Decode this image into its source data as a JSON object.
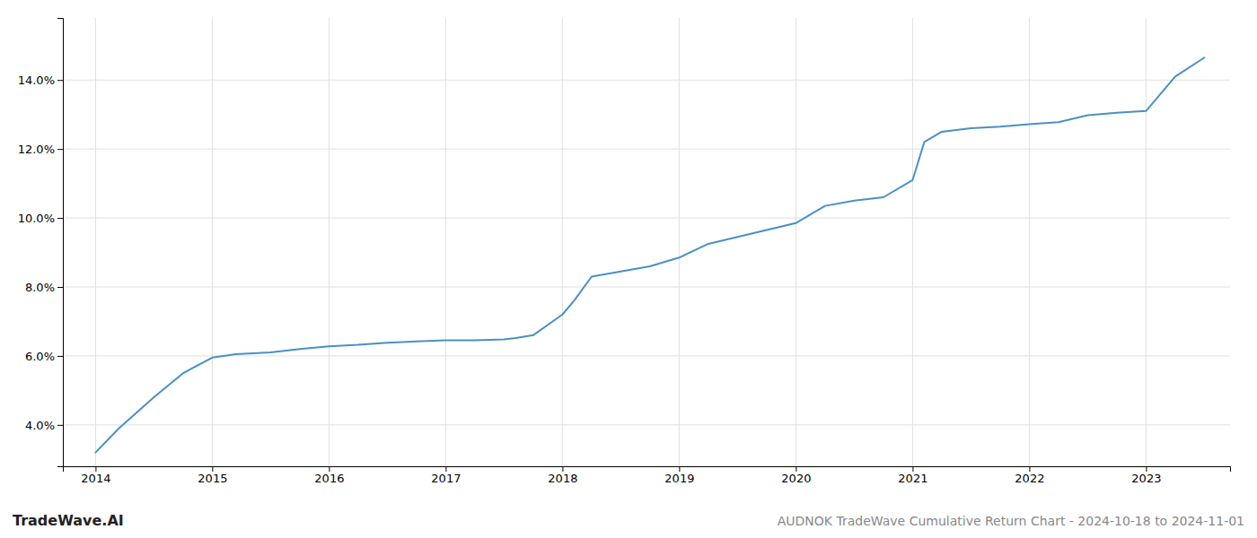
{
  "chart_data": {
    "type": "line",
    "title": "AUDNOK TradeWave Cumulative Return Chart - 2024-10-18 to 2024-11-01",
    "annotations": [
      "TradeWave.AI"
    ],
    "x": [
      2014.0,
      2014.2,
      2014.5,
      2014.75,
      2015.0,
      2015.2,
      2015.5,
      2015.75,
      2016.0,
      2016.25,
      2016.5,
      2016.75,
      2017.0,
      2017.25,
      2017.5,
      2017.6,
      2017.75,
      2018.0,
      2018.1,
      2018.25,
      2018.5,
      2018.75,
      2019.0,
      2019.25,
      2019.5,
      2019.75,
      2020.0,
      2020.1,
      2020.25,
      2020.5,
      2020.75,
      2021.0,
      2021.1,
      2021.25,
      2021.5,
      2021.75,
      2022.0,
      2022.25,
      2022.5,
      2022.75,
      2023.0,
      2023.25,
      2023.5
    ],
    "values": [
      3.2,
      3.9,
      4.8,
      5.5,
      5.95,
      6.05,
      6.1,
      6.2,
      6.28,
      6.32,
      6.38,
      6.42,
      6.45,
      6.45,
      6.48,
      6.52,
      6.6,
      7.2,
      7.6,
      8.3,
      8.45,
      8.6,
      8.85,
      9.25,
      9.45,
      9.65,
      9.85,
      10.05,
      10.35,
      10.5,
      10.6,
      11.1,
      12.2,
      12.5,
      12.6,
      12.65,
      12.72,
      12.78,
      12.98,
      13.05,
      13.1,
      14.1,
      14.65
    ],
    "color": "#4a90c4",
    "xlim": [
      2013.72,
      2023.72
    ],
    "ylim": [
      2.8,
      15.8
    ],
    "xticks": [
      2014,
      2015,
      2016,
      2017,
      2018,
      2019,
      2020,
      2021,
      2022,
      2023
    ],
    "yticks": [
      {
        "value": 4.0,
        "label": "4.0%"
      },
      {
        "value": 6.0,
        "label": "6.0%"
      },
      {
        "value": 8.0,
        "label": "8.0%"
      },
      {
        "value": 10.0,
        "label": "10.0%"
      },
      {
        "value": 12.0,
        "label": "12.0%"
      },
      {
        "value": 14.0,
        "label": "14.0%"
      }
    ],
    "grid": true
  }
}
